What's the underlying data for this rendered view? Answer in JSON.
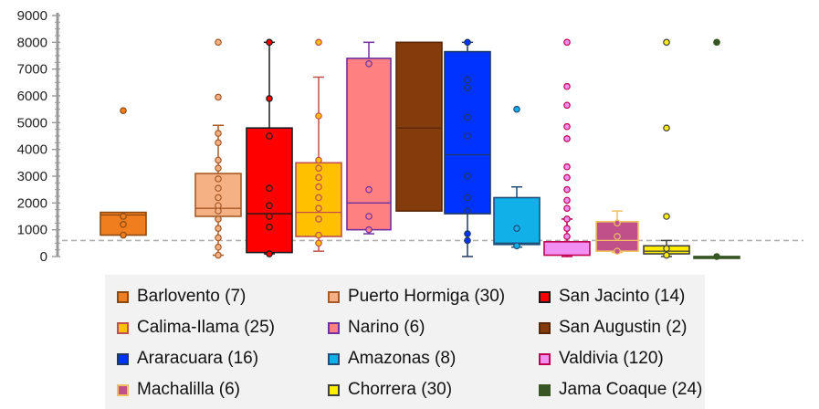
{
  "chart_data": {
    "type": "box",
    "y_ticks": [
      "0",
      "1000",
      "2000",
      "3000",
      "4000",
      "5000",
      "6000",
      "7000",
      "8000",
      "9000"
    ],
    "ylim": [
      0,
      9000
    ],
    "reference_line": 600,
    "series": [
      {
        "name": "Barlovento",
        "label": "Barlovento (7)",
        "fill": "#f07d1e",
        "stroke": "#8a4a12",
        "box": {
          "q1": 800,
          "median": 1550,
          "q3": 1650,
          "wmin": null,
          "wmax": null
        },
        "points": [
          5450,
          1500,
          1200,
          800
        ]
      },
      {
        "name": "Puerto Hormiga",
        "label": "Puerto Hormiga (30)",
        "fill": "#f5b184",
        "stroke": "#a65a28",
        "box": {
          "q1": 1500,
          "median": 1800,
          "q3": 3100,
          "wmin": 50,
          "wmax": 4900
        },
        "points": [
          8000,
          5950,
          4600,
          4250,
          3600,
          3300,
          2900,
          2550,
          2200,
          1900,
          1700,
          1400,
          1050,
          700,
          350,
          50
        ]
      },
      {
        "name": "San Jacinto",
        "label": "San Jacinto (14)",
        "fill": "#ff0000",
        "stroke": "#1a1a1a",
        "box": {
          "q1": 150,
          "median": 1600,
          "q3": 4800,
          "wmin": 100,
          "wmax": 8000
        },
        "points": [
          8000,
          5900,
          4500,
          2550,
          1900,
          1500,
          1100,
          100
        ]
      },
      {
        "name": "Calima-Ilama",
        "label": "Calima-Ilama (25)",
        "fill": "#ffc000",
        "stroke": "#c0504d",
        "box": {
          "q1": 750,
          "median": 1650,
          "q3": 3500,
          "wmin": 200,
          "wmax": 6700
        },
        "points": [
          8000,
          5250,
          3600,
          3300,
          2950,
          2600,
          2200,
          1800,
          1400,
          800,
          500
        ]
      },
      {
        "name": "Narino",
        "label": "Narino (6)",
        "fill": "#fe8080",
        "stroke": "#7030a0",
        "box": {
          "q1": 1000,
          "median": 2000,
          "q3": 7400,
          "wmin": 850,
          "wmax": 8000
        },
        "points": [
          7200,
          2500,
          1500,
          1000
        ]
      },
      {
        "name": "San Augustin",
        "label": "San Augustin (2)",
        "fill": "#843c0c",
        "stroke": "#5a2808",
        "box": {
          "q1": 1700,
          "median": 4800,
          "q3": 8000,
          "wmin": null,
          "wmax": null
        },
        "points": []
      },
      {
        "name": "Araracuara",
        "label": "Araracuara (16)",
        "fill": "#0033ff",
        "stroke": "#1f3864",
        "box": {
          "q1": 1600,
          "median": 3800,
          "q3": 7650,
          "wmin": 0,
          "wmax": 8000
        },
        "points": [
          8000,
          6600,
          6300,
          5200,
          4500,
          3000,
          2200,
          1700,
          850,
          600
        ]
      },
      {
        "name": "Amazonas",
        "label": "Amazonas (8)",
        "fill": "#11b0e8",
        "stroke": "#1f4e79",
        "box": {
          "q1": 450,
          "median": 500,
          "q3": 2200,
          "wmin": 350,
          "wmax": 2600
        },
        "points": [
          5500,
          1050,
          400
        ]
      },
      {
        "name": "Valdivia",
        "label": "Valdivia (120)",
        "fill": "#f28ff2",
        "stroke": "#c00050",
        "box": {
          "q1": 50,
          "median": 550,
          "q3": 550,
          "wmin": 0,
          "wmax": 1400
        },
        "points": [
          8000,
          6350,
          5650,
          4850,
          4400,
          3350,
          2950,
          2500,
          2100,
          1800,
          1400,
          1050,
          750
        ]
      },
      {
        "name": "Machalilla",
        "label": "Machalilla (6)",
        "fill": "#c0508a",
        "stroke": "#f0c060",
        "box": {
          "q1": 200,
          "median": 600,
          "q3": 1300,
          "wmin": 150,
          "wmax": 1700
        },
        "points": [
          1250,
          750,
          200
        ]
      },
      {
        "name": "Chorrera",
        "label": "Chorrera (30)",
        "fill": "#ffee00",
        "stroke": "#404040",
        "box": {
          "q1": 100,
          "median": 200,
          "q3": 400,
          "wmin": 0,
          "wmax": 600
        },
        "points": [
          8000,
          4800,
          1500,
          300,
          50
        ]
      },
      {
        "name": "Jama Coaque",
        "label": "Jama Coaque (24)",
        "fill": "#375623",
        "stroke": "#375623",
        "box": {
          "q1": 0,
          "median": 0,
          "q3": 0,
          "wmin": null,
          "wmax": null
        },
        "points": [
          8000,
          0
        ]
      }
    ]
  }
}
